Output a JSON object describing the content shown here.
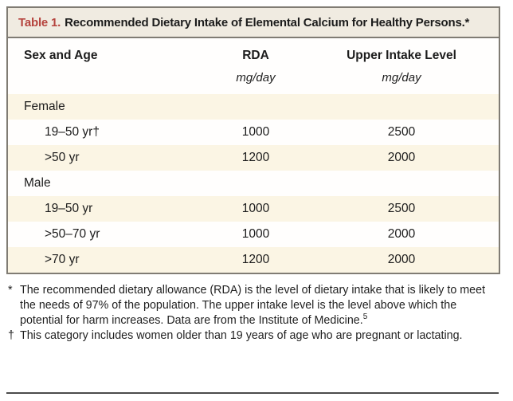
{
  "table": {
    "title_label": "Table 1.",
    "title": "Recommended Dietary Intake of Elemental Calcium for Healthy Persons.*",
    "columns": [
      "Sex and Age",
      "RDA",
      "Upper Intake Level"
    ],
    "unit_label": "mg/day",
    "rows": [
      {
        "label": "Female",
        "type": "group",
        "rda": "",
        "upper": ""
      },
      {
        "label": "19–50 yr†",
        "type": "data",
        "rda": "1000",
        "upper": "2500"
      },
      {
        "label": ">50 yr",
        "type": "data",
        "rda": "1200",
        "upper": "2000"
      },
      {
        "label": "Male",
        "type": "group",
        "rda": "",
        "upper": ""
      },
      {
        "label": "19–50 yr",
        "type": "data",
        "rda": "1000",
        "upper": "2500"
      },
      {
        "label": ">50–70 yr",
        "type": "data",
        "rda": "1000",
        "upper": "2000"
      },
      {
        "label": ">70 yr",
        "type": "data",
        "rda": "1200",
        "upper": "2000"
      }
    ]
  },
  "footnotes": [
    {
      "marker": "*",
      "text": "The recommended dietary allowance (RDA) is the level of dietary intake that is likely to meet the needs of 97% of the population. The upper intake level is the level above which the potential for harm increases. Data are from the Institute of Medicine.",
      "sup": "5"
    },
    {
      "marker": "†",
      "text": "This category includes women older than 19 years of age who are pregnant or lactating.",
      "sup": ""
    }
  ],
  "colors": {
    "accent_red": "#b5433d",
    "header_bar_bg": "#f0ebe1",
    "row_shade_bg": "#fbf5e4",
    "border_gray": "#807c74",
    "rule_dark": "#4b4b4b"
  }
}
